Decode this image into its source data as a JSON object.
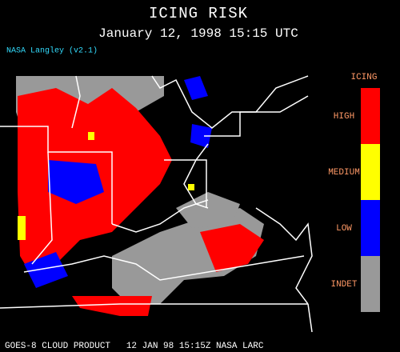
{
  "header": {
    "title": "ICING RISK",
    "subtitle": "January 12, 1998 15:15 UTC",
    "credit": "NASA Langley (v2.1)"
  },
  "legend": {
    "title": "ICING",
    "items": [
      {
        "label": "HIGH",
        "color": "#ff0000"
      },
      {
        "label": "MEDIUM",
        "color": "#ffff00"
      },
      {
        "label": "LOW",
        "color": "#0000ff"
      },
      {
        "label": "INDET",
        "color": "#999999"
      }
    ]
  },
  "footer": "GOES-8 CLOUD PRODUCT   12 JAN 98 15:15Z NASA LARC"
}
